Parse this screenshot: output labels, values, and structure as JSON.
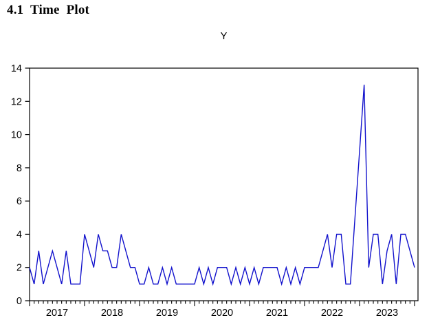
{
  "heading": "4.1 Time Plot",
  "chart_data": {
    "type": "line",
    "title": "Y",
    "series_name": "Y",
    "frequency": "monthly",
    "x_start": "2017M01",
    "values": [
      2,
      1,
      3,
      1,
      2,
      3,
      2,
      1,
      3,
      1,
      1,
      1,
      4,
      3,
      2,
      4,
      3,
      3,
      2,
      2,
      4,
      3,
      2,
      2,
      1,
      1,
      2,
      1,
      1,
      2,
      1,
      2,
      1,
      1,
      1,
      1,
      1,
      2,
      1,
      2,
      1,
      2,
      2,
      2,
      1,
      2,
      1,
      2,
      1,
      2,
      1,
      2,
      2,
      2,
      2,
      1,
      2,
      1,
      2,
      1,
      2,
      2,
      2,
      2,
      3,
      4,
      2,
      4,
      4,
      1,
      1,
      5,
      9,
      13,
      2,
      4,
      4,
      1,
      3,
      4,
      1,
      4,
      4,
      3,
      2
    ],
    "ylim": [
      0,
      14
    ],
    "y_ticks": [
      0,
      2,
      4,
      6,
      8,
      10,
      12,
      14
    ],
    "x_year_labels": [
      "2017",
      "2018",
      "2019",
      "2020",
      "2021",
      "2022",
      "2023"
    ],
    "xlabel": "",
    "ylabel": "",
    "grid": false,
    "legend": "none",
    "line_color": "#1111cc",
    "axis_color": "#000000",
    "peak_value": 13
  }
}
